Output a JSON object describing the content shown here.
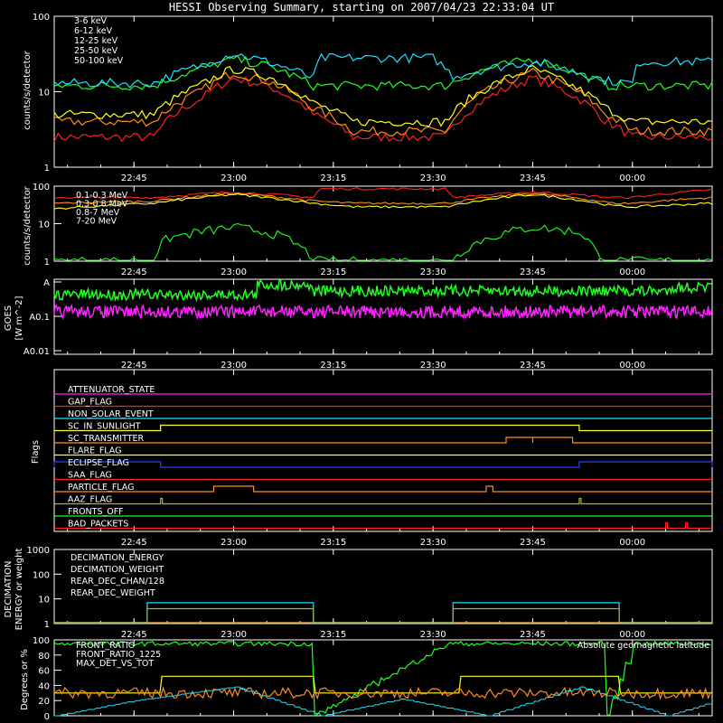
{
  "title": "HESSI Observing Summary, starting on 2007/04/23 22:33:04 UT",
  "colors": {
    "red": "#ff2020",
    "orange": "#ff8c1a",
    "yellow": "#ffff20",
    "green": "#20ff20",
    "cyan": "#20e0ff",
    "magenta": "#ff20ff",
    "blue": "#2040ff",
    "olive": "#b0b040"
  },
  "x_ticks": [
    "22:45",
    "23:00",
    "23:15",
    "23:30",
    "23:45",
    "00:00"
  ],
  "chart_data": [
    {
      "type": "line",
      "id": "counts-low",
      "ylabel": "counts/s/detector",
      "yscale": "log",
      "ylim": [
        1,
        100
      ],
      "y_ticks": [
        "1",
        "10",
        "100"
      ],
      "x_range": [
        "22:33",
        "00:12"
      ],
      "series": [
        {
          "name": "3-6 keV",
          "color": "red",
          "x": [
            "22:33",
            "22:48",
            "22:55",
            "23:00",
            "23:05",
            "23:12",
            "23:18",
            "23:25",
            "23:32",
            "23:38",
            "23:45",
            "23:50",
            "23:56",
            "00:00",
            "00:12"
          ],
          "values": [
            2.5,
            2.5,
            8,
            15,
            12,
            5,
            2.5,
            2.5,
            2.5,
            8,
            15,
            10,
            4,
            2.5,
            2.5
          ]
        },
        {
          "name": "6-12 keV",
          "color": "orange",
          "x": [
            "22:33",
            "22:48",
            "22:55",
            "23:00",
            "23:05",
            "23:12",
            "23:18",
            "23:25",
            "23:32",
            "23:38",
            "23:45",
            "23:50",
            "23:56",
            "00:00",
            "00:12"
          ],
          "values": [
            4,
            4,
            10,
            18,
            14,
            6,
            3,
            3,
            3,
            10,
            18,
            12,
            5,
            3,
            3
          ]
        },
        {
          "name": "12-25 keV",
          "color": "yellow",
          "x": [
            "22:33",
            "22:48",
            "22:55",
            "23:00",
            "23:05",
            "23:12",
            "23:18",
            "23:25",
            "23:32",
            "23:38",
            "23:45",
            "23:50",
            "23:56",
            "00:00",
            "00:12"
          ],
          "values": [
            5,
            5,
            12,
            20,
            16,
            7,
            4,
            4,
            4,
            11,
            20,
            13,
            6,
            4,
            4
          ]
        },
        {
          "name": "25-50 keV",
          "color": "green",
          "x": [
            "22:33",
            "22:48",
            "22:55",
            "23:00",
            "23:05",
            "23:12",
            "23:18",
            "23:25",
            "23:32",
            "23:38",
            "23:45",
            "23:50",
            "23:56",
            "00:00",
            "00:12"
          ],
          "values": [
            12,
            12,
            20,
            27,
            22,
            12,
            12,
            12,
            12,
            20,
            27,
            20,
            12,
            12,
            12
          ]
        },
        {
          "name": "50-100 keV",
          "color": "cyan",
          "x": [
            "22:33",
            "22:48",
            "22:55",
            "23:00",
            "23:05",
            "23:12",
            "23:13",
            "23:30",
            "23:33",
            "23:38",
            "23:45",
            "23:50",
            "23:56",
            "00:00",
            "00:01",
            "00:12"
          ],
          "values": [
            13,
            13,
            22,
            32,
            25,
            15,
            28,
            28,
            16,
            20,
            25,
            20,
            14,
            13,
            25,
            25
          ]
        }
      ]
    },
    {
      "type": "line",
      "id": "counts-high",
      "ylabel": "counts/s/detector",
      "yscale": "log",
      "ylim": [
        1,
        100
      ],
      "y_ticks": [
        "1",
        "10",
        "100"
      ],
      "x_range": [
        "22:33",
        "00:12"
      ],
      "series": [
        {
          "name": "0.1-0.3 MeV",
          "color": "red",
          "x": [
            "22:33",
            "22:48",
            "23:00",
            "23:12",
            "23:13",
            "23:32",
            "23:33",
            "23:45",
            "23:57",
            "00:00",
            "00:12"
          ],
          "values": [
            50,
            50,
            70,
            50,
            85,
            85,
            50,
            70,
            50,
            50,
            80
          ]
        },
        {
          "name": "0.3-0.8 MeV",
          "color": "orange",
          "x": [
            "22:33",
            "22:48",
            "23:00",
            "23:12",
            "23:18",
            "23:32",
            "23:45",
            "23:57",
            "00:00",
            "00:12"
          ],
          "values": [
            35,
            40,
            65,
            40,
            35,
            35,
            65,
            35,
            35,
            50
          ]
        },
        {
          "name": "0.8-7 MeV",
          "color": "yellow",
          "x": [
            "22:33",
            "22:48",
            "23:00",
            "23:12",
            "23:18",
            "23:32",
            "23:45",
            "23:57",
            "00:00",
            "00:12"
          ],
          "values": [
            25,
            35,
            60,
            35,
            28,
            28,
            60,
            30,
            28,
            35
          ]
        },
        {
          "name": "7-20 MeV",
          "color": "green",
          "x": [
            "22:33",
            "22:48",
            "22:50",
            "23:00",
            "23:05",
            "23:12",
            "23:33",
            "23:38",
            "23:45",
            "23:52",
            "23:55",
            "00:12"
          ],
          "values": [
            1,
            1,
            4,
            8,
            6,
            1,
            1,
            4,
            8,
            6,
            1,
            1
          ]
        }
      ]
    },
    {
      "type": "line",
      "id": "goes",
      "ylabel": "GOES [W m^-2]",
      "yscale": "log",
      "y_ticks": [
        "A",
        "A0.1",
        "A0.01"
      ],
      "x_range": [
        "22:33",
        "00:12"
      ],
      "series": [
        {
          "name": "GOES long",
          "color": "green",
          "x": [
            "22:33",
            "22:53",
            "23:05",
            "23:50",
            "00:12"
          ],
          "values": [
            "A level",
            "A level",
            "above A",
            "A level",
            "A level"
          ]
        },
        {
          "name": "GOES short",
          "color": "magenta",
          "x": [
            "22:33",
            "00:12"
          ],
          "values": [
            "below A0.1",
            "below A0.1"
          ]
        }
      ]
    },
    {
      "type": "line",
      "id": "flags",
      "ylabel": "Flags",
      "x_range": [
        "22:33",
        "00:12"
      ],
      "series": [
        {
          "name": "ATTENUATOR_STATE",
          "color": "magenta",
          "intervals": []
        },
        {
          "name": "GAP_FLAG",
          "color": "red",
          "intervals": []
        },
        {
          "name": "NON_SOLAR_EVENT",
          "color": "cyan",
          "intervals": []
        },
        {
          "name": "SC_IN_SUNLIGHT",
          "color": "yellow",
          "intervals": [
            [
              "22:49",
              "23:52"
            ]
          ]
        },
        {
          "name": "SC_TRANSMITTER",
          "color": "orange",
          "intervals": [
            [
              "23:41",
              "23:45"
            ],
            [
              "23:45",
              "23:51"
            ]
          ]
        },
        {
          "name": "FLARE_FLAG",
          "color": "yellow",
          "intervals": []
        },
        {
          "name": "ECLIPSE_FLAG",
          "color": "blue",
          "intervals": [
            [
              "22:33",
              "22:49"
            ],
            [
              "23:52",
              "00:12"
            ]
          ]
        },
        {
          "name": "SAA_FLAG",
          "color": "red",
          "intervals": []
        },
        {
          "name": "PARTICLE_FLAG",
          "color": "orange",
          "intervals": [
            [
              "22:57",
              "23:03"
            ],
            [
              "23:38",
              "23:39"
            ]
          ]
        },
        {
          "name": "AAZ_FLAG",
          "color": "olive",
          "intervals": [
            [
              "22:49",
              "22:49"
            ],
            [
              "23:52",
              "23:52"
            ]
          ]
        },
        {
          "name": "FRONTS_OFF",
          "color": "green",
          "intervals": []
        },
        {
          "name": "BAD_PACKETS",
          "color": "red",
          "intervals": [
            [
              "00:05",
              "00:05"
            ],
            [
              "00:08",
              "00:08"
            ]
          ]
        }
      ]
    },
    {
      "type": "line",
      "id": "decimation",
      "ylabel": "DECIMATION ENERGY or weight",
      "yscale": "log",
      "ylim": [
        1,
        1000
      ],
      "y_ticks": [
        "1",
        "10",
        "100",
        "1000"
      ],
      "x_range": [
        "22:33",
        "00:12"
      ],
      "series": [
        {
          "name": "DECIMATION_ENERGY",
          "color": "green",
          "x": [
            "22:33",
            "00:12"
          ],
          "values": [
            1,
            1
          ]
        },
        {
          "name": "DECIMATION_WEIGHT",
          "color": "orange",
          "x": [
            "22:33",
            "00:12"
          ],
          "values": [
            1,
            1
          ]
        },
        {
          "name": "REAR_DEC_CHAN/128",
          "color": "cyan",
          "x": [
            "22:33",
            "22:47",
            "22:47",
            "23:12",
            "23:12",
            "23:33",
            "23:33",
            "23:58",
            "23:58",
            "00:12"
          ],
          "values": [
            1,
            1,
            7,
            7,
            1,
            1,
            7,
            7,
            1,
            1
          ]
        },
        {
          "name": "REAR_DEC_WEIGHT",
          "color": "olive",
          "x": [
            "22:33",
            "22:47",
            "22:47",
            "23:12",
            "23:12",
            "23:33",
            "23:33",
            "23:58",
            "23:58",
            "00:12"
          ],
          "values": [
            1,
            1,
            4,
            4,
            1,
            1,
            4,
            4,
            1,
            1
          ]
        }
      ]
    },
    {
      "type": "line",
      "id": "ratios",
      "ylabel": "Degrees or %",
      "ylim": [
        0,
        100
      ],
      "y_ticks": [
        "0",
        "20",
        "40",
        "60",
        "80",
        "100"
      ],
      "x_range": [
        "22:33",
        "00:12"
      ],
      "annotation": "Absolute geomagnetic latitude",
      "series": [
        {
          "name": "FRONT_RATIO",
          "color": "green",
          "x": [
            "22:33",
            "23:11",
            "23:12",
            "23:32",
            "23:33",
            "23:55",
            "23:56",
            "00:00",
            "00:12"
          ],
          "values": [
            95,
            95,
            0,
            95,
            95,
            95,
            0,
            95,
            95
          ]
        },
        {
          "name": "FRONT_RATIO_1225",
          "color": "yellow",
          "x": [
            "22:33",
            "22:48",
            "22:48",
            "23:11",
            "23:11",
            "23:33",
            "23:33",
            "23:57",
            "23:57",
            "00:12"
          ],
          "values": [
            30,
            30,
            52,
            52,
            30,
            30,
            52,
            52,
            30,
            30
          ]
        },
        {
          "name": "MAX_DET_VS_TOT",
          "color": "orange",
          "x": [
            "22:33",
            "00:12"
          ],
          "values": [
            30,
            30
          ]
        },
        {
          "name": "Absolute geomagnetic latitude",
          "color": "cyan",
          "x": [
            "22:33",
            "22:45",
            "23:00",
            "23:13",
            "23:25",
            "23:38",
            "23:52",
            "00:05",
            "00:12"
          ],
          "values": [
            0,
            20,
            38,
            0,
            22,
            0,
            38,
            0,
            18
          ]
        }
      ]
    }
  ]
}
